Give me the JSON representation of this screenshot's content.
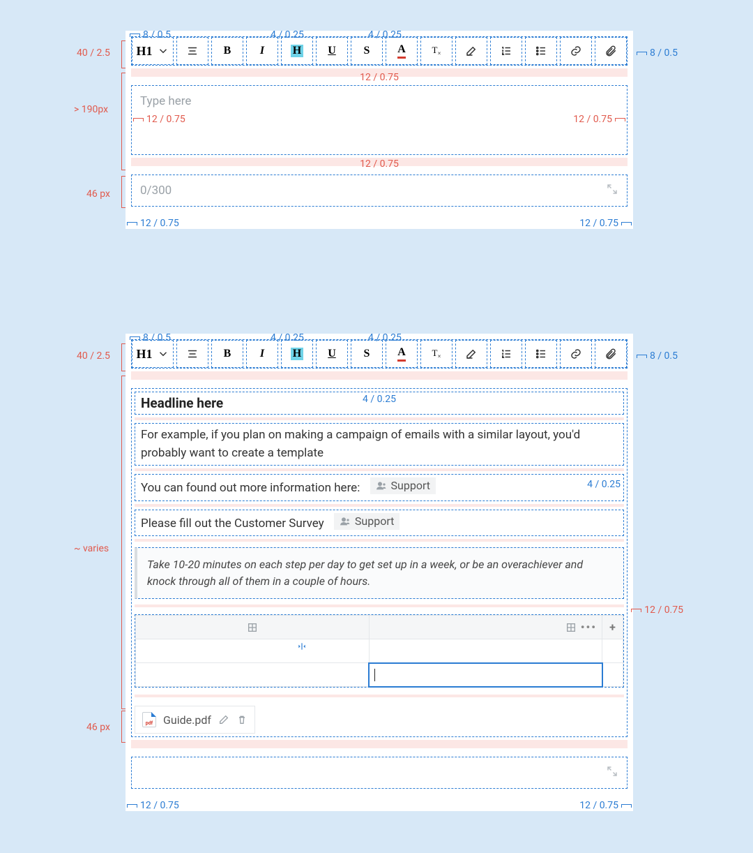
{
  "colors": {
    "page_bg": "#d7e8f7",
    "card_bg": "#ffffff",
    "dash_blue": "#2b7cd3",
    "pink_fill": "rgba(241,124,113,.18)",
    "anno_red": "#e15a4d",
    "text_muted": "#9aa1a7",
    "border_gray": "#e4e7ea"
  },
  "toolbar": {
    "heading_label": "H1",
    "buttons": [
      "heading",
      "align",
      "bold",
      "italic",
      "highlight",
      "underline",
      "strike",
      "textcolor",
      "clear",
      "textstyle",
      "ol",
      "ul",
      "link",
      "attach"
    ]
  },
  "cardA": {
    "placeholder": "Type here",
    "counter": "0/300",
    "anno": {
      "top_left": "8 / 0.5",
      "top_mid1": "4 / 0.25",
      "top_mid2": "4 / 0.25",
      "right_of_toolbar": "8 / 0.5",
      "left_height": "40 / 2.5",
      "left_side1": "> 190px",
      "left_side2": "46 px",
      "inner_top": "12 / 0.75",
      "inner_left": "12 / 0.75",
      "inner_right": "12 / 0.75",
      "inner_bottom": "12 / 0.75",
      "under_left": "12 / 0.75",
      "under_right": "12 / 0.75"
    }
  },
  "cardB": {
    "headline": "Headline here",
    "para": "For example, if you plan on making a campaign of emails with a similar layout, you'd probably want to create a template",
    "line1": "You can found out more information here:",
    "line2": "Please fill out the Customer Survey",
    "chip": "Support",
    "quote": "Take 10-20 minutes on each step per day to get set up in a week, or be an overachiever and knock through all of them in a couple of hours.",
    "attachment_name": "Guide.pdf",
    "pdf_badge": "pdf",
    "anno": {
      "top_left": "8 / 0.5",
      "top_mid1": "4 / 0.25",
      "top_mid2": "4 / 0.25",
      "right_of_toolbar": "8 / 0.5",
      "left_height": "40 / 2.5",
      "left_side1": "~ varies",
      "left_side2": "46 px",
      "row_gap": "4 / 0.25",
      "row_gap2": "4 / 0.25",
      "right_pad": "12 / 0.75",
      "under_left": "12 / 0.75",
      "under_right": "12 / 0.75"
    }
  }
}
